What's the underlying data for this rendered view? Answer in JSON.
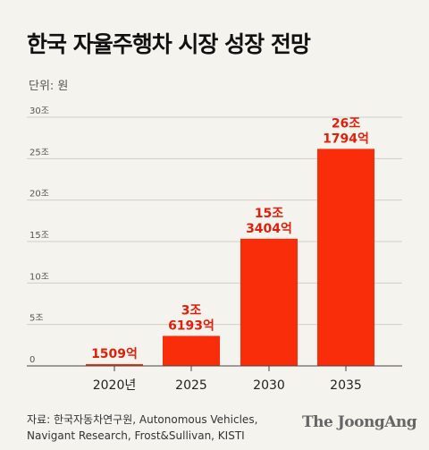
{
  "title": "한국 자율주행차 시장 성장 전망",
  "unit": "단위: 원",
  "source": {
    "line1": "자료: 한국자동차연구원, Autonomous Vehicles,",
    "line2": "Navigant Research, Frost&Sullivan, KISTI"
  },
  "logo": "The JoongAng",
  "colors": {
    "bar": "#fa2d0a",
    "label": "#e0200a",
    "grid": "#cfcfc8",
    "axis": "#444444"
  },
  "chart_data": {
    "type": "bar",
    "categories": [
      "2020년",
      "2025",
      "2030",
      "2035"
    ],
    "values": [
      0.1509,
      3.6193,
      15.3404,
      26.1794
    ],
    "value_labels": [
      [
        "1509억"
      ],
      [
        "3조",
        "6193억"
      ],
      [
        "15조",
        "3404억"
      ],
      [
        "26조",
        "1794억"
      ]
    ],
    "ylim": [
      0,
      30
    ],
    "yticks": [
      0,
      5,
      10,
      15,
      20,
      25,
      30
    ],
    "ytick_labels": [
      "0",
      "5조",
      "10조",
      "15조",
      "20조",
      "25조",
      "30조"
    ],
    "grid": true
  }
}
